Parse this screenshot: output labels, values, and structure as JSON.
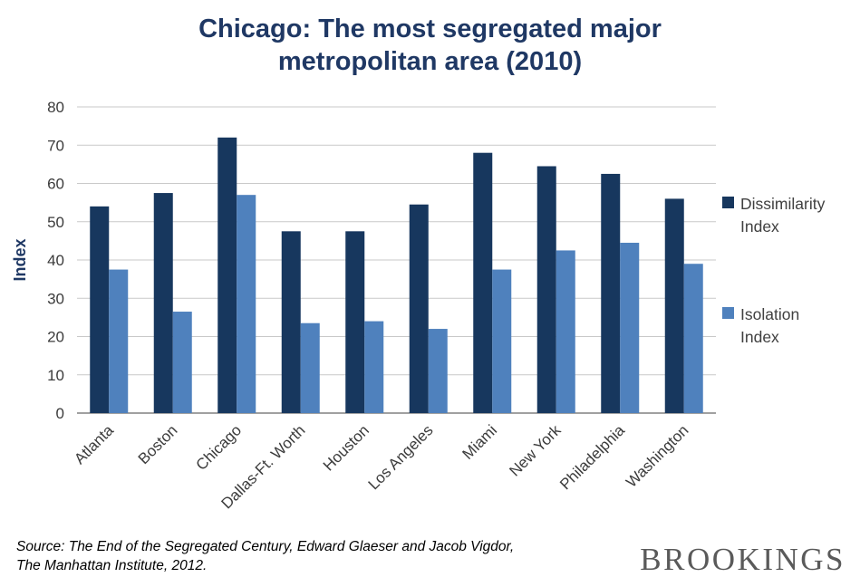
{
  "chart_data": {
    "type": "bar",
    "title": "Chicago: The most segregated major metropolitan area (2010)",
    "xlabel": "",
    "ylabel": "Index",
    "ylim": [
      0,
      80
    ],
    "ytick_step": 10,
    "grid": true,
    "legend_position": "right",
    "categories": [
      "Atlanta",
      "Boston",
      "Chicago",
      "Dallas-Ft. Worth",
      "Houston",
      "Los Angeles",
      "Miami",
      "New York",
      "Philadelphia",
      "Washington"
    ],
    "series": [
      {
        "name": "Dissimilarity Index",
        "color": "#17375E",
        "values": [
          54,
          57.5,
          72,
          47.5,
          47.5,
          54.5,
          68,
          64.5,
          62.5,
          56
        ]
      },
      {
        "name": "Isolation Index",
        "color": "#4F81BD",
        "values": [
          37.5,
          26.5,
          57,
          23.5,
          24,
          22,
          37.5,
          42.5,
          44.5,
          39
        ]
      }
    ]
  },
  "footer": {
    "source_line1": "Source: The End of the Segregated Century, Edward Glaeser and Jacob Vigdor,",
    "source_line2": "The Manhattan Institute, 2012.",
    "logo": "BROOKINGS"
  },
  "colors": {
    "title": "#1F3864",
    "axis_label": "#1F3864",
    "tick_text": "#3B3B3B",
    "grid": "#C9C9C9",
    "axis_line": "#808080",
    "logo": "#5A5A5A"
  }
}
